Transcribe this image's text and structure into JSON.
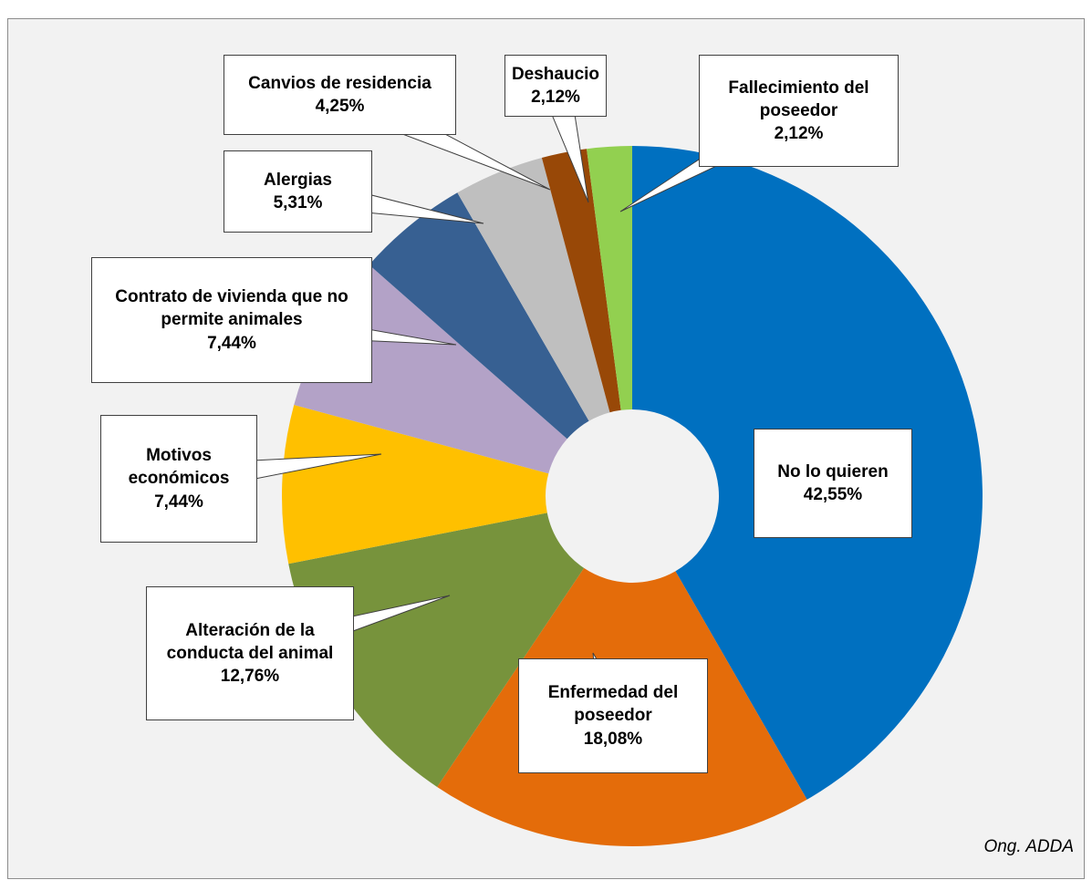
{
  "chart_data": {
    "type": "donut",
    "categories": [
      "No lo quieren",
      "Enfermedad del poseedor",
      "Alteración de la conducta del animal",
      "Motivos económicos",
      "Contrato de vivienda que no permite animales",
      "Alergias",
      "Canvios de residencia",
      "Deshaucio",
      "Fallecimiento del poseedor"
    ],
    "values": [
      42.55,
      18.08,
      12.76,
      7.44,
      7.44,
      5.31,
      4.25,
      2.12,
      2.12
    ],
    "value_labels": [
      "42,55%",
      "18,08%",
      "12,76%",
      "7,44%",
      "7,44%",
      "5,31%",
      "4,25%",
      "2,12%",
      "2,12%"
    ],
    "colors": [
      "#0070c0",
      "#e46c0a",
      "#77933c",
      "#ffc000",
      "#b3a2c7",
      "#376092",
      "#bfbfbf",
      "#984807",
      "#92d050"
    ],
    "source": "Ong. ADDA"
  }
}
